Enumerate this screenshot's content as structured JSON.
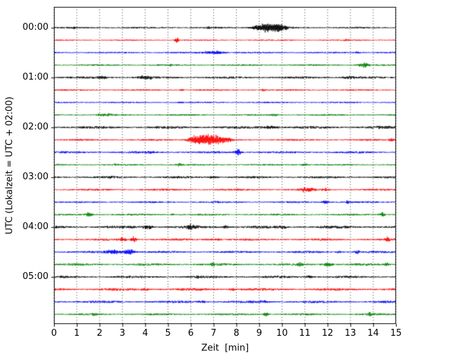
{
  "figure": {
    "background": "#ffffff",
    "frame_color": "#000000",
    "grid_style": "vertical dotted black lines at each minute"
  },
  "chart_data": {
    "type": "line",
    "kind": "seismogram-helicorder",
    "title": "",
    "xlabel": "Zeit  [min]",
    "ylabel": "UTC (Lokalzeit = UTC + 02:00)",
    "xlim": [
      0,
      15
    ],
    "x_ticks": [
      0,
      1,
      2,
      3,
      4,
      5,
      6,
      7,
      8,
      9,
      10,
      11,
      12,
      13,
      14,
      15
    ],
    "y_tick_labels": [
      "00:00",
      "01:00",
      "02:00",
      "03:00",
      "04:00",
      "05:00"
    ],
    "minutes_per_row": 15,
    "rows_per_hour": 4,
    "grid": "vertical dotted",
    "legend": "none",
    "trace_colors_cycle": [
      "#000000",
      "#ff0000",
      "#0000ff",
      "#008000"
    ],
    "traces": [
      {
        "time": "00:00",
        "color": "#000000",
        "noise_amp": 1.1,
        "events": [
          [
            9.35,
            7,
            0.45
          ],
          [
            9.9,
            3,
            0.25
          ],
          [
            6.8,
            1.5,
            0.12
          ],
          [
            0.9,
            1.2,
            0.08
          ]
        ]
      },
      {
        "time": "00:15",
        "color": "#ff0000",
        "noise_amp": 0.9,
        "events": [
          [
            5.4,
            4.5,
            0.07
          ],
          [
            12.8,
            1,
            0.1
          ]
        ]
      },
      {
        "time": "00:30",
        "color": "#0000ff",
        "noise_amp": 1.1,
        "events": [
          [
            7.0,
            3,
            0.35
          ],
          [
            13.3,
            1.8,
            0.08
          ]
        ]
      },
      {
        "time": "00:45",
        "color": "#008000",
        "noise_amp": 1.1,
        "events": [
          [
            13.6,
            3.5,
            0.2
          ],
          [
            5.1,
            1.2,
            0.08
          ]
        ]
      },
      {
        "time": "01:00",
        "color": "#000000",
        "noise_amp": 1.4,
        "events": [
          [
            4.0,
            3,
            0.25
          ],
          [
            2.1,
            1.8,
            0.2
          ],
          [
            13.0,
            2.2,
            0.25
          ]
        ]
      },
      {
        "time": "01:15",
        "color": "#ff0000",
        "noise_amp": 1.1,
        "events": [
          [
            5.6,
            1.8,
            0.08
          ],
          [
            9.2,
            1.3,
            0.1
          ]
        ]
      },
      {
        "time": "01:30",
        "color": "#0000ff",
        "noise_amp": 1.0,
        "events": [
          [
            5.5,
            1.4,
            0.08
          ]
        ]
      },
      {
        "time": "01:45",
        "color": "#008000",
        "noise_amp": 1.1,
        "events": [
          [
            2.2,
            2.2,
            0.25
          ],
          [
            9.7,
            1.8,
            0.12
          ]
        ]
      },
      {
        "time": "02:00",
        "color": "#000000",
        "noise_amp": 1.7,
        "events": [
          [
            9.5,
            2.2,
            0.3
          ],
          [
            14.4,
            2.2,
            0.18
          ]
        ]
      },
      {
        "time": "02:15",
        "color": "#ff0000",
        "noise_amp": 1.2,
        "events": [
          [
            6.9,
            8.5,
            0.5
          ],
          [
            6.2,
            3.5,
            0.25
          ],
          [
            14.8,
            2.5,
            0.08
          ]
        ]
      },
      {
        "time": "02:30",
        "color": "#0000ff",
        "noise_amp": 1.4,
        "events": [
          [
            8.05,
            4.5,
            0.12
          ],
          [
            4.2,
            1.8,
            0.15
          ]
        ]
      },
      {
        "time": "02:45",
        "color": "#008000",
        "noise_amp": 1.1,
        "events": [
          [
            5.5,
            2.2,
            0.08
          ],
          [
            11.0,
            2.2,
            0.12
          ],
          [
            2.7,
            1.6,
            0.08
          ]
        ]
      },
      {
        "time": "03:00",
        "color": "#000000",
        "noise_amp": 1.4,
        "events": [
          [
            7.0,
            1.8,
            0.15
          ],
          [
            2.5,
            1.6,
            0.12
          ]
        ]
      },
      {
        "time": "03:15",
        "color": "#ff0000",
        "noise_amp": 1.3,
        "events": [
          [
            11.1,
            3.5,
            0.25
          ],
          [
            11.9,
            2.2,
            0.15
          ]
        ]
      },
      {
        "time": "03:30",
        "color": "#0000ff",
        "noise_amp": 1.2,
        "events": [
          [
            11.9,
            2.6,
            0.12
          ],
          [
            12.9,
            2.2,
            0.08
          ],
          [
            7.0,
            1.6,
            0.15
          ]
        ]
      },
      {
        "time": "03:45",
        "color": "#008000",
        "noise_amp": 1.2,
        "events": [
          [
            1.55,
            3.5,
            0.12
          ],
          [
            14.4,
            4,
            0.08
          ],
          [
            5.2,
            1.6,
            0.08
          ]
        ]
      },
      {
        "time": "04:00",
        "color": "#000000",
        "noise_amp": 1.7,
        "events": [
          [
            4.1,
            3.5,
            0.18
          ],
          [
            6.0,
            4,
            0.2
          ],
          [
            7.5,
            2.6,
            0.12
          ],
          [
            10.0,
            2.2,
            0.15
          ]
        ]
      },
      {
        "time": "04:15",
        "color": "#ff0000",
        "noise_amp": 1.4,
        "events": [
          [
            3.0,
            3.5,
            0.12
          ],
          [
            3.5,
            4.5,
            0.1
          ],
          [
            14.6,
            3.5,
            0.08
          ],
          [
            7.0,
            1.8,
            0.25
          ]
        ]
      },
      {
        "time": "04:30",
        "color": "#0000ff",
        "noise_amp": 1.4,
        "events": [
          [
            2.6,
            3.5,
            0.25
          ],
          [
            3.3,
            4.5,
            0.18
          ],
          [
            13.3,
            3,
            0.08
          ],
          [
            12.5,
            1.8,
            0.08
          ]
        ]
      },
      {
        "time": "04:45",
        "color": "#008000",
        "noise_amp": 1.5,
        "events": [
          [
            7.0,
            3.5,
            0.1
          ],
          [
            10.8,
            3,
            0.12
          ],
          [
            12.0,
            3,
            0.2
          ],
          [
            14.6,
            2.6,
            0.08
          ]
        ]
      },
      {
        "time": "05:00",
        "color": "#000000",
        "noise_amp": 1.5,
        "events": [
          [
            11.2,
            2.6,
            0.12
          ],
          [
            6.3,
            1.8,
            0.15
          ]
        ]
      },
      {
        "time": "05:15",
        "color": "#ff0000",
        "noise_amp": 1.7,
        "events": [
          [
            4.0,
            1.8,
            0.15
          ],
          [
            7.8,
            1.8,
            0.12
          ]
        ]
      },
      {
        "time": "05:30",
        "color": "#0000ff",
        "noise_amp": 1.6,
        "events": [
          [
            9.2,
            2.2,
            0.12
          ],
          [
            6.5,
            1.8,
            0.15
          ]
        ]
      },
      {
        "time": "05:45",
        "color": "#008000",
        "noise_amp": 1.3,
        "events": [
          [
            9.3,
            3,
            0.1
          ],
          [
            13.9,
            3,
            0.12
          ],
          [
            1.8,
            1.6,
            0.08
          ]
        ]
      }
    ]
  }
}
